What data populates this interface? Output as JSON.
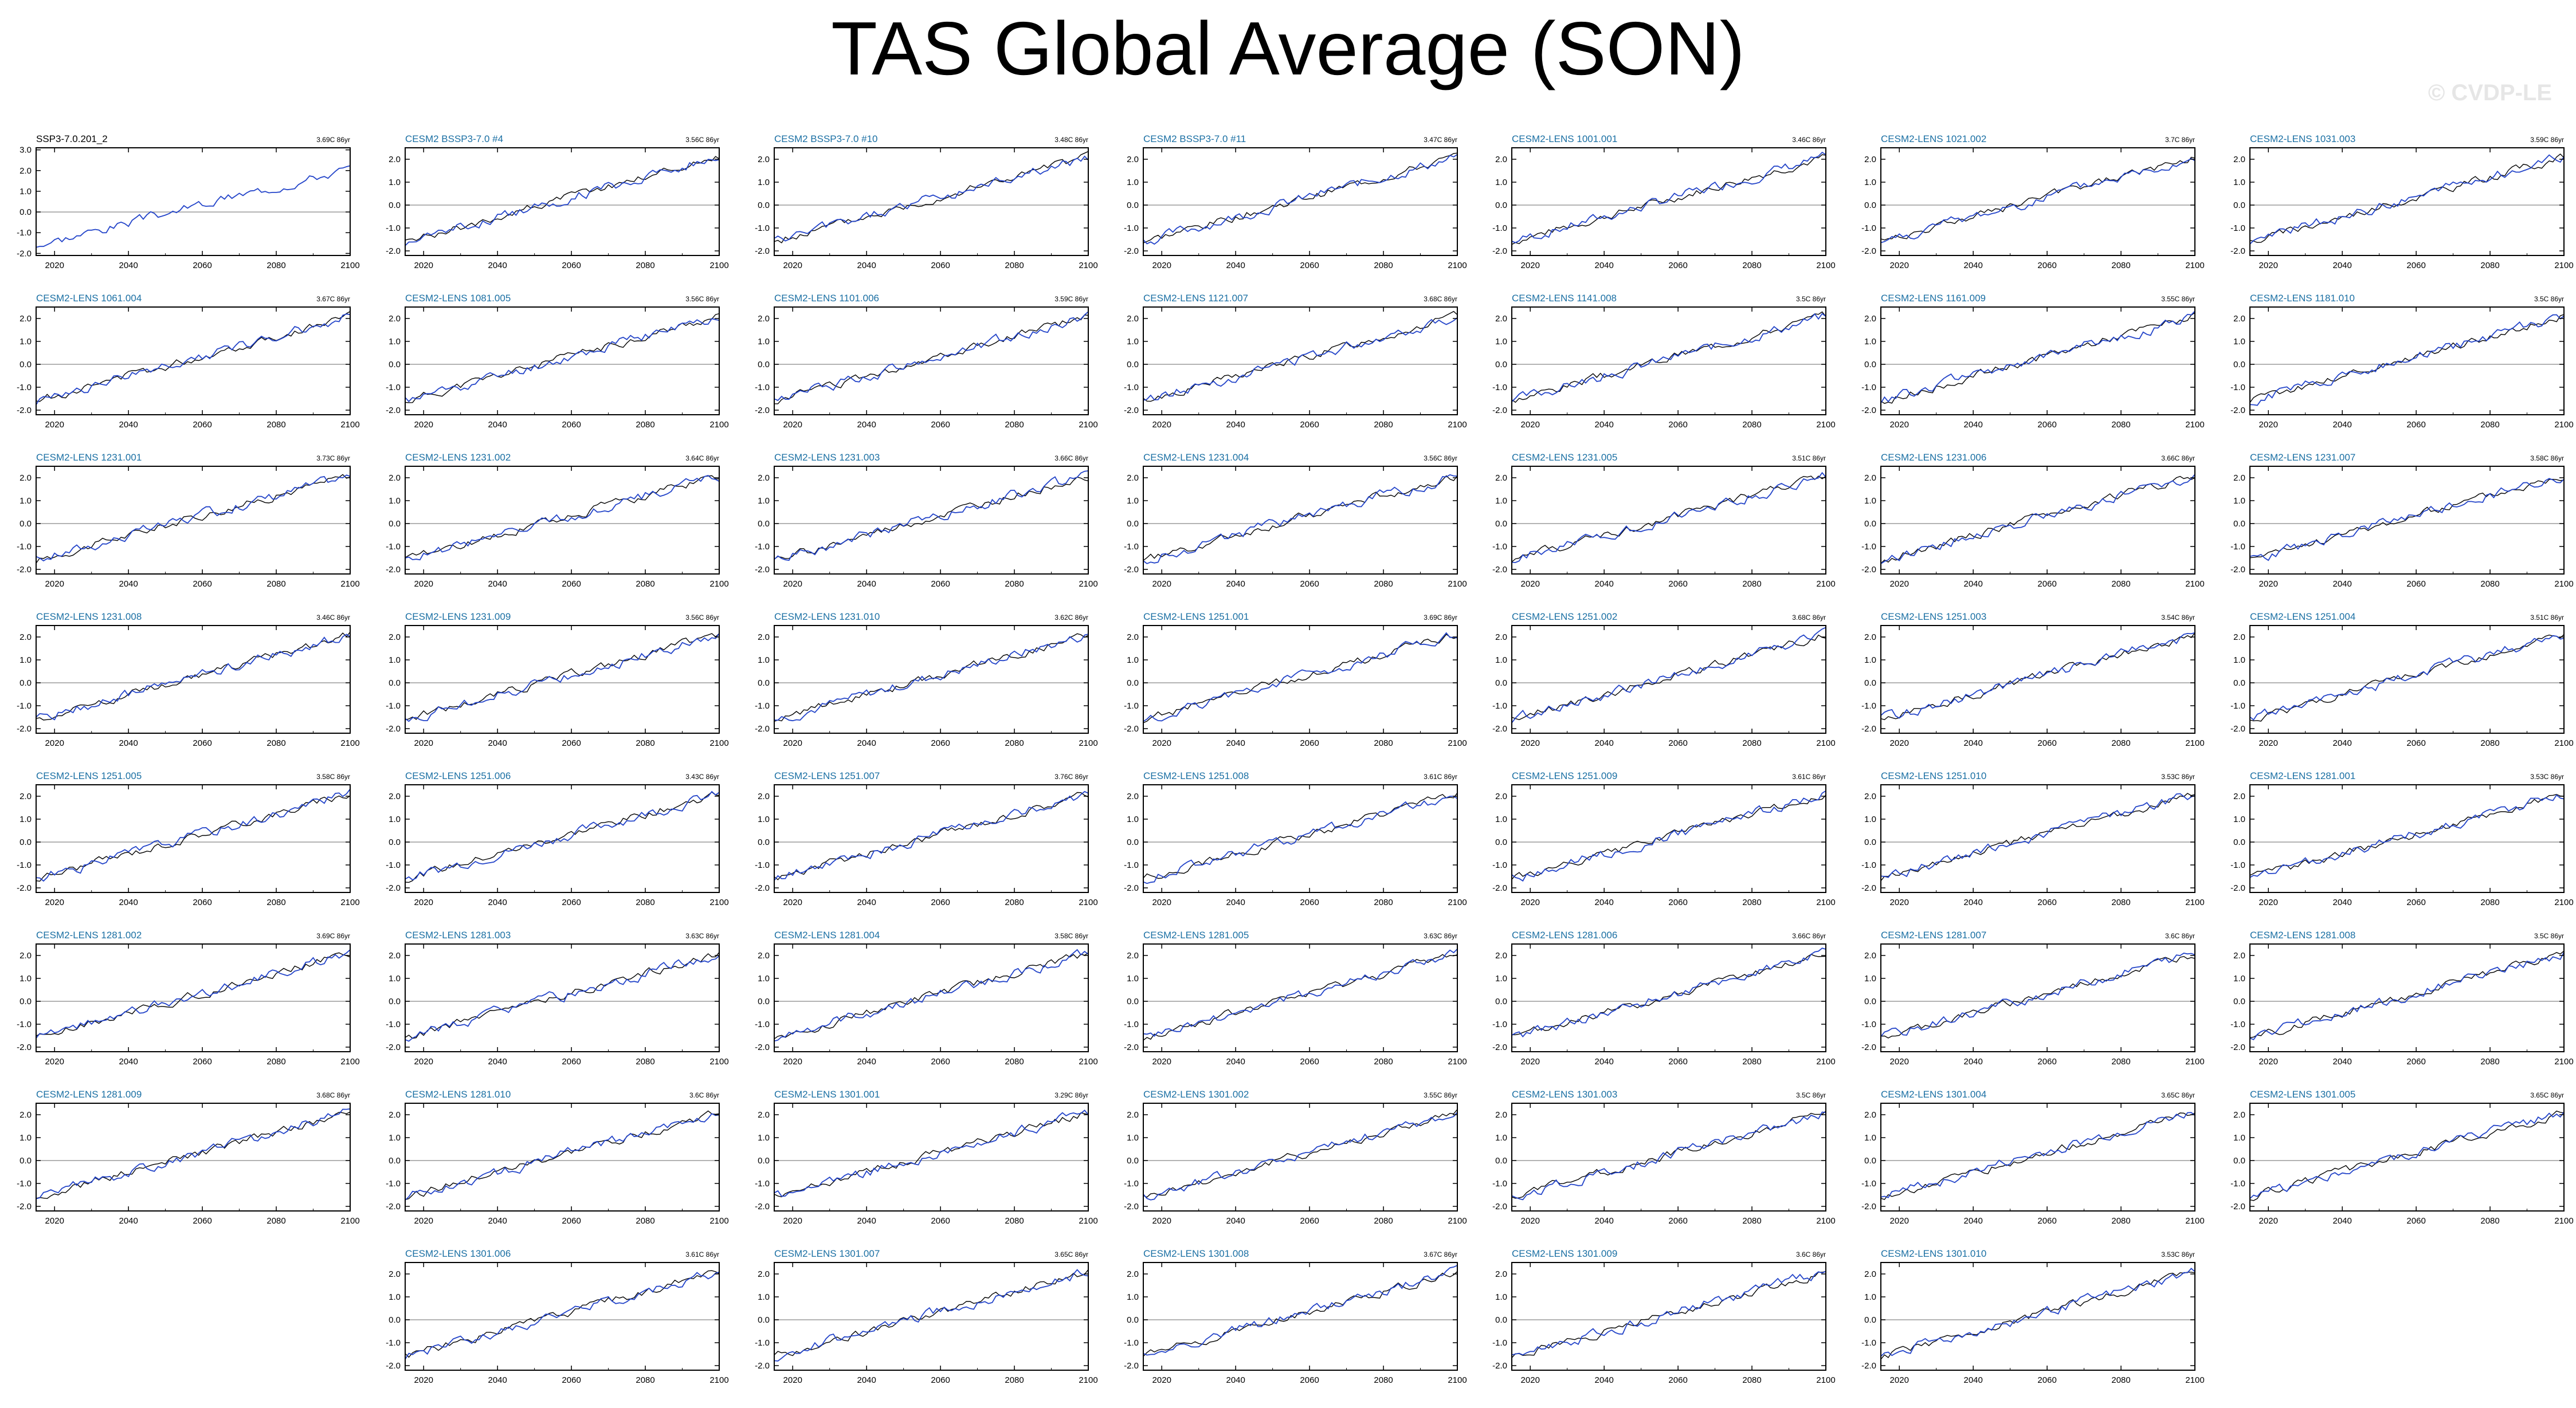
{
  "title": "TAS Global Average (SON)",
  "watermark": "© CVDP-LE",
  "colors": {
    "obs_line": "#000000",
    "model_line": "#2344c9",
    "obs_title": "#000000",
    "model_title": "#1a6fa3",
    "zero_line": "#9a9a9a",
    "frame": "#000000"
  },
  "chart_data": {
    "type": "line",
    "layout": "7-column panel grid",
    "x_tick_labels": [
      "2020",
      "2040",
      "2060",
      "2080",
      "2100"
    ],
    "y_tick_labels": [
      "-2.0",
      "-1.0",
      "0.0",
      "1.0",
      "2.0"
    ],
    "first_panel_y_tick_labels": [
      "-2.0",
      "-1.0",
      "0.0",
      "1.0",
      "2.0",
      "3.0"
    ],
    "xlim": [
      2015,
      2100
    ],
    "ylim": [
      -2.2,
      2.5
    ],
    "first_panel_ylim": [
      -2.1,
      3.1
    ],
    "start_value": -1.6,
    "end_value": 2.1,
    "trend_units": "86yr",
    "panels": [
      {
        "name": "SSP3-7.0.201_2",
        "trend": "3.69C 86yr",
        "obs": true
      },
      {
        "name": "CESM2 BSSP3-7.0 #4",
        "trend": "3.56C 86yr"
      },
      {
        "name": "CESM2 BSSP3-7.0 #10",
        "trend": "3.48C 86yr"
      },
      {
        "name": "CESM2 BSSP3-7.0 #11",
        "trend": "3.47C 86yr"
      },
      {
        "name": "CESM2-LENS 1001.001",
        "trend": "3.46C 86yr"
      },
      {
        "name": "CESM2-LENS 1021.002",
        "trend": "3.7C 86yr"
      },
      {
        "name": "CESM2-LENS 1031.003",
        "trend": "3.59C 86yr"
      },
      {
        "name": "CESM2-LENS 1061.004",
        "trend": "3.67C 86yr"
      },
      {
        "name": "CESM2-LENS 1081.005",
        "trend": "3.56C 86yr"
      },
      {
        "name": "CESM2-LENS 1101.006",
        "trend": "3.59C 86yr"
      },
      {
        "name": "CESM2-LENS 1121.007",
        "trend": "3.68C 86yr"
      },
      {
        "name": "CESM2-LENS 1141.008",
        "trend": "3.5C 86yr"
      },
      {
        "name": "CESM2-LENS 1161.009",
        "trend": "3.55C 86yr"
      },
      {
        "name": "CESM2-LENS 1181.010",
        "trend": "3.5C 86yr"
      },
      {
        "name": "CESM2-LENS 1231.001",
        "trend": "3.73C 86yr"
      },
      {
        "name": "CESM2-LENS 1231.002",
        "trend": "3.64C 86yr"
      },
      {
        "name": "CESM2-LENS 1231.003",
        "trend": "3.66C 86yr"
      },
      {
        "name": "CESM2-LENS 1231.004",
        "trend": "3.56C 86yr"
      },
      {
        "name": "CESM2-LENS 1231.005",
        "trend": "3.51C 86yr"
      },
      {
        "name": "CESM2-LENS 1231.006",
        "trend": "3.66C 86yr"
      },
      {
        "name": "CESM2-LENS 1231.007",
        "trend": "3.58C 86yr"
      },
      {
        "name": "CESM2-LENS 1231.008",
        "trend": "3.46C 86yr"
      },
      {
        "name": "CESM2-LENS 1231.009",
        "trend": "3.56C 86yr"
      },
      {
        "name": "CESM2-LENS 1231.010",
        "trend": "3.62C 86yr"
      },
      {
        "name": "CESM2-LENS 1251.001",
        "trend": "3.69C 86yr"
      },
      {
        "name": "CESM2-LENS 1251.002",
        "trend": "3.68C 86yr"
      },
      {
        "name": "CESM2-LENS 1251.003",
        "trend": "3.54C 86yr"
      },
      {
        "name": "CESM2-LENS 1251.004",
        "trend": "3.51C 86yr"
      },
      {
        "name": "CESM2-LENS 1251.005",
        "trend": "3.58C 86yr"
      },
      {
        "name": "CESM2-LENS 1251.006",
        "trend": "3.43C 86yr"
      },
      {
        "name": "CESM2-LENS 1251.007",
        "trend": "3.76C 86yr"
      },
      {
        "name": "CESM2-LENS 1251.008",
        "trend": "3.61C 86yr"
      },
      {
        "name": "CESM2-LENS 1251.009",
        "trend": "3.61C 86yr"
      },
      {
        "name": "CESM2-LENS 1251.010",
        "trend": "3.53C 86yr"
      },
      {
        "name": "CESM2-LENS 1281.001",
        "trend": "3.53C 86yr"
      },
      {
        "name": "CESM2-LENS 1281.002",
        "trend": "3.69C 86yr"
      },
      {
        "name": "CESM2-LENS 1281.003",
        "trend": "3.63C 86yr"
      },
      {
        "name": "CESM2-LENS 1281.004",
        "trend": "3.58C 86yr"
      },
      {
        "name": "CESM2-LENS 1281.005",
        "trend": "3.63C 86yr"
      },
      {
        "name": "CESM2-LENS 1281.006",
        "trend": "3.66C 86yr"
      },
      {
        "name": "CESM2-LENS 1281.007",
        "trend": "3.6C 86yr"
      },
      {
        "name": "CESM2-LENS 1281.008",
        "trend": "3.5C 86yr"
      },
      {
        "name": "CESM2-LENS 1281.009",
        "trend": "3.68C 86yr"
      },
      {
        "name": "CESM2-LENS 1281.010",
        "trend": "3.6C 86yr"
      },
      {
        "name": "CESM2-LENS 1301.001",
        "trend": "3.29C 86yr"
      },
      {
        "name": "CESM2-LENS 1301.002",
        "trend": "3.55C 86yr"
      },
      {
        "name": "CESM2-LENS 1301.003",
        "trend": "3.5C 86yr"
      },
      {
        "name": "CESM2-LENS 1301.004",
        "trend": "3.65C 86yr"
      },
      {
        "name": "CESM2-LENS 1301.005",
        "trend": "3.65C 86yr"
      },
      {
        "name": "CESM2-LENS 1301.006",
        "trend": "3.61C 86yr"
      },
      {
        "name": "CESM2-LENS 1301.007",
        "trend": "3.65C 86yr"
      },
      {
        "name": "CESM2-LENS 1301.008",
        "trend": "3.67C 86yr"
      },
      {
        "name": "CESM2-LENS 1301.009",
        "trend": "3.6C 86yr"
      },
      {
        "name": "CESM2-LENS 1301.010",
        "trend": "3.53C 86yr"
      }
    ]
  }
}
